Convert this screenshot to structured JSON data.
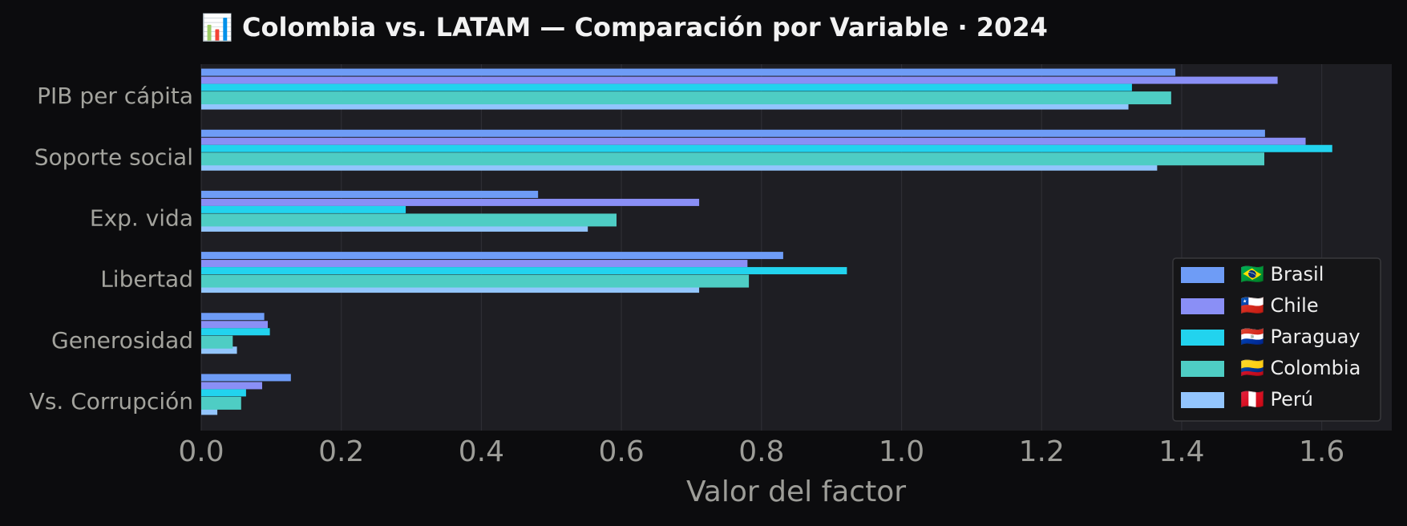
{
  "chart_data": {
    "type": "hbar",
    "title": "📊 Colombia vs. LATAM — Comparación por Variable · 2024",
    "xlabel": "Valor del factor",
    "categories": [
      "PIB per cápita",
      "Soporte social",
      "Exp. vida",
      "Libertad",
      "Generosidad",
      "Vs. Corrupción"
    ],
    "series": [
      {
        "name": "🇧🇷 Brasil",
        "color": "#6e9cf6",
        "values": [
          1.391,
          1.519,
          0.481,
          0.831,
          0.09,
          0.128
        ]
      },
      {
        "name": "🇨🇱 Chile",
        "color": "#8a8ff6",
        "values": [
          1.537,
          1.577,
          0.711,
          0.78,
          0.095,
          0.087
        ]
      },
      {
        "name": "🇵🇾 Paraguay",
        "color": "#22d3ee",
        "values": [
          1.329,
          1.615,
          0.292,
          0.922,
          0.098,
          0.064
        ]
      },
      {
        "name": "🇨🇴 Colombia",
        "color": "#4ecdc4",
        "values": [
          1.385,
          1.518,
          0.593,
          0.782,
          0.045,
          0.057
        ]
      },
      {
        "name": "🇵🇪 Perú",
        "color": "#93c5fd",
        "values": [
          1.324,
          1.365,
          0.552,
          0.711,
          0.051,
          0.023
        ]
      }
    ],
    "xlim": [
      0,
      1.7
    ],
    "xticks": [
      {
        "value": 0,
        "label": "0.0"
      },
      0.2,
      0.4,
      0.6,
      0.8,
      {
        "value": 1,
        "label": "1.0"
      },
      1.2,
      1.4,
      1.6
    ],
    "grid": true,
    "legend": "lower right"
  }
}
